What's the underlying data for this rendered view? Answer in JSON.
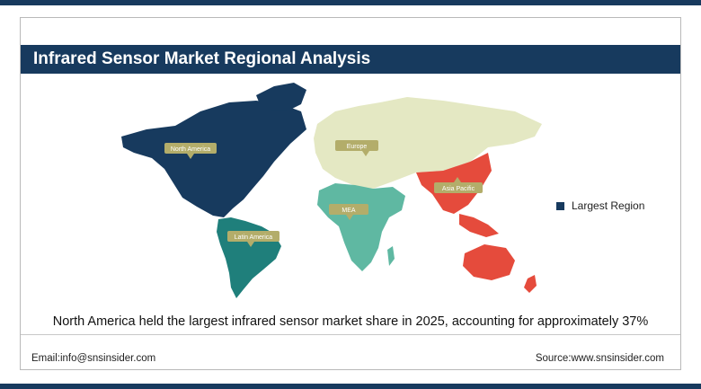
{
  "title": "Infrared Sensor Market Regional Analysis",
  "colors": {
    "accent": "#173a5e",
    "north_america": "#173a5e",
    "latin_america": "#1f7f7b",
    "europe": "#e4e8c3",
    "asia_pacific": "#e54b3c",
    "mea": "#5fb8a2",
    "label_box": "#b3ad6a"
  },
  "legend": {
    "label": "Largest Region"
  },
  "caption": "North America held the largest infrared sensor market share in 2025, accounting for approximately 37%",
  "footer": {
    "email": "Email:info@snsinsider.com",
    "source": "Source:www.snsinsider.com"
  },
  "chart_data": {
    "type": "map",
    "title": "Infrared Sensor Market Regional Analysis",
    "regions": [
      {
        "name": "North America",
        "status": "Largest Region"
      },
      {
        "name": "Europe"
      },
      {
        "name": "Asia Pacific"
      },
      {
        "name": "MEA"
      },
      {
        "name": "Latin America"
      }
    ],
    "legend": [
      "Largest Region"
    ],
    "legend_position": "right"
  }
}
